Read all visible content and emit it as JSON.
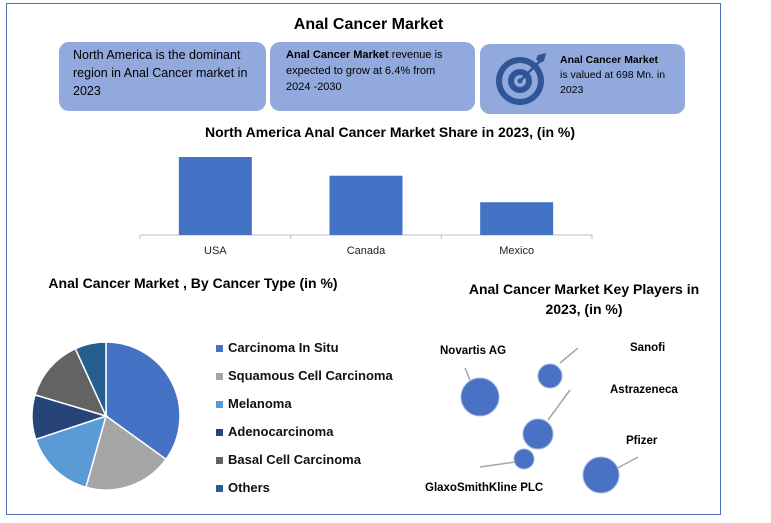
{
  "title": "Anal Cancer Market",
  "info_boxes": {
    "box1": {
      "text": "North America is the dominant region in Anal Cancer market in 2023"
    },
    "box2": {
      "bold": "Anal Cancer Market",
      "rest": " revenue is expected to grow at 6.4% from 2024 -2030"
    },
    "box3": {
      "bold": "Anal Cancer Market",
      "rest": "is valued at 698 Mn. in 2023",
      "icon": "target-icon"
    }
  },
  "colors": {
    "box_bg": "#91a9dc",
    "bar": "#4472c4",
    "bubble": "#4a72c4"
  },
  "chart_data": [
    {
      "type": "bar",
      "title": "North America Anal Cancer Market Share in 2023,  (in %)",
      "categories": [
        "USA",
        "Canada",
        "Mexico"
      ],
      "values": [
        100,
        76,
        42
      ],
      "ylim": [
        0,
        100
      ],
      "grid": false,
      "note": "values are relative bar heights; no axis values printed"
    },
    {
      "type": "pie",
      "title": "Anal Cancer  Market , By Cancer Type  (in %)",
      "categories": [
        "Carcinoma In Situ",
        "Squamous Cell Carcinoma",
        "Melanoma",
        "Adenocarcinoma",
        "Basal Cell Carcinoma",
        "Others"
      ],
      "values": [
        36,
        20,
        16,
        10,
        14,
        7
      ],
      "colors": [
        "#4472c4",
        "#a5a5a5",
        "#5b9bd5",
        "#264478",
        "#636363",
        "#255e91"
      ],
      "legend": "right"
    },
    {
      "type": "scatter",
      "title": "Anal Cancer  Market Key Players in 2023, (in %)",
      "points": [
        {
          "name": "Novartis AG",
          "size": 19
        },
        {
          "name": "Sanofi",
          "size": 12
        },
        {
          "name": "Astrazeneca",
          "size": 15
        },
        {
          "name": "GlaxoSmithKline PLC",
          "size": 10
        },
        {
          "name": "Pfizer",
          "size": 18
        }
      ]
    }
  ]
}
